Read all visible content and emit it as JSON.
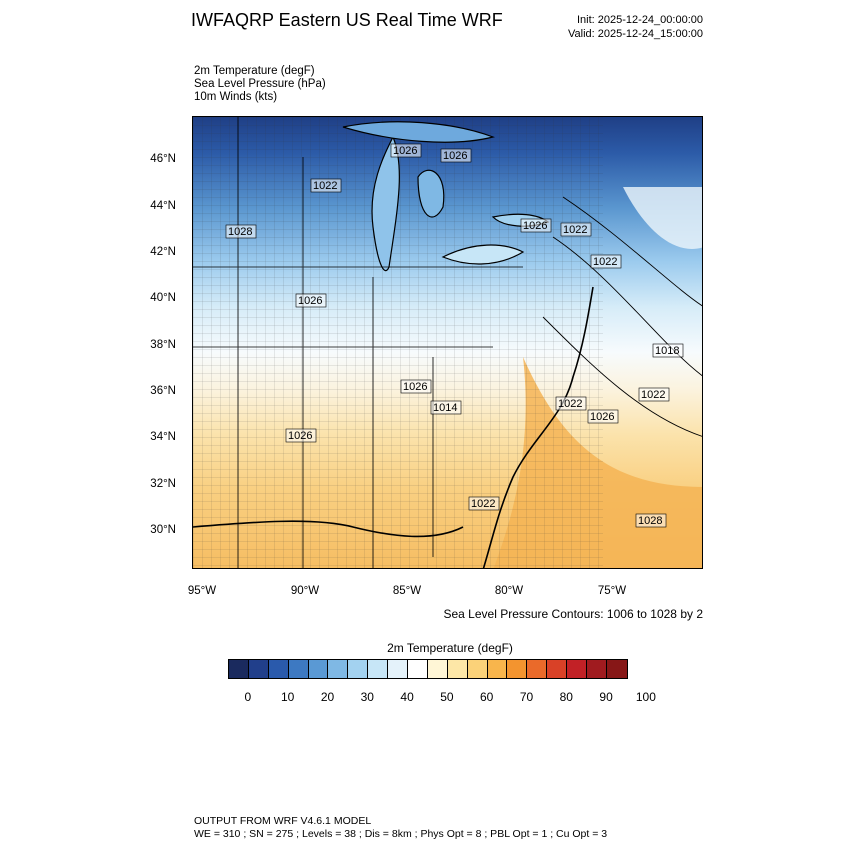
{
  "header": {
    "title": "IWFAQRP Eastern US Real Time WRF",
    "init": "Init: 2025-12-24_00:00:00",
    "valid": "Valid: 2025-12-24_15:00:00"
  },
  "fields": [
    "2m Temperature   (degF)",
    "Sea Level Pressure   (hPa)",
    "10m Winds   (kts)"
  ],
  "map": {
    "lat_labels": [
      "46°N",
      "44°N",
      "42°N",
      "40°N",
      "38°N",
      "36°N",
      "34°N",
      "32°N",
      "30°N"
    ],
    "lon_labels": [
      "95°W",
      "90°W",
      "85°W",
      "80°W",
      "75°W"
    ],
    "pressure_labels": [
      "1026",
      "1026",
      "1022",
      "1028",
      "1026",
      "1022",
      "1022",
      "1026",
      "1026",
      "1014",
      "1018",
      "1022",
      "1026",
      "1026",
      "1022",
      "1028",
      "1022"
    ],
    "contour_note": "Sea Level Pressure Contours: 1006 to 1028 by 2"
  },
  "colorbar": {
    "title": "2m Temperature  (degF)",
    "colors": [
      "#1a2a5e",
      "#213f8b",
      "#2a5aac",
      "#3d79c2",
      "#5a99d4",
      "#7fb8e4",
      "#a3d2f0",
      "#c7e6f7",
      "#e4f2fa",
      "#ffffff",
      "#fff6d6",
      "#fde7a7",
      "#fbd279",
      "#f8b54c",
      "#f3942f",
      "#ea6a2a",
      "#d94127",
      "#c22126",
      "#a01b1f",
      "#871717"
    ],
    "tick_labels": [
      "0",
      "10",
      "20",
      "30",
      "40",
      "50",
      "60",
      "70",
      "80",
      "90",
      "100"
    ]
  },
  "footer": {
    "line1": "OUTPUT FROM WRF V4.6.1 MODEL",
    "line2": "WE = 310 ; SN = 275 ; Levels = 38 ; Dis = 8km ; Phys Opt = 8 ; PBL Opt = 1 ; Cu Opt = 3"
  }
}
